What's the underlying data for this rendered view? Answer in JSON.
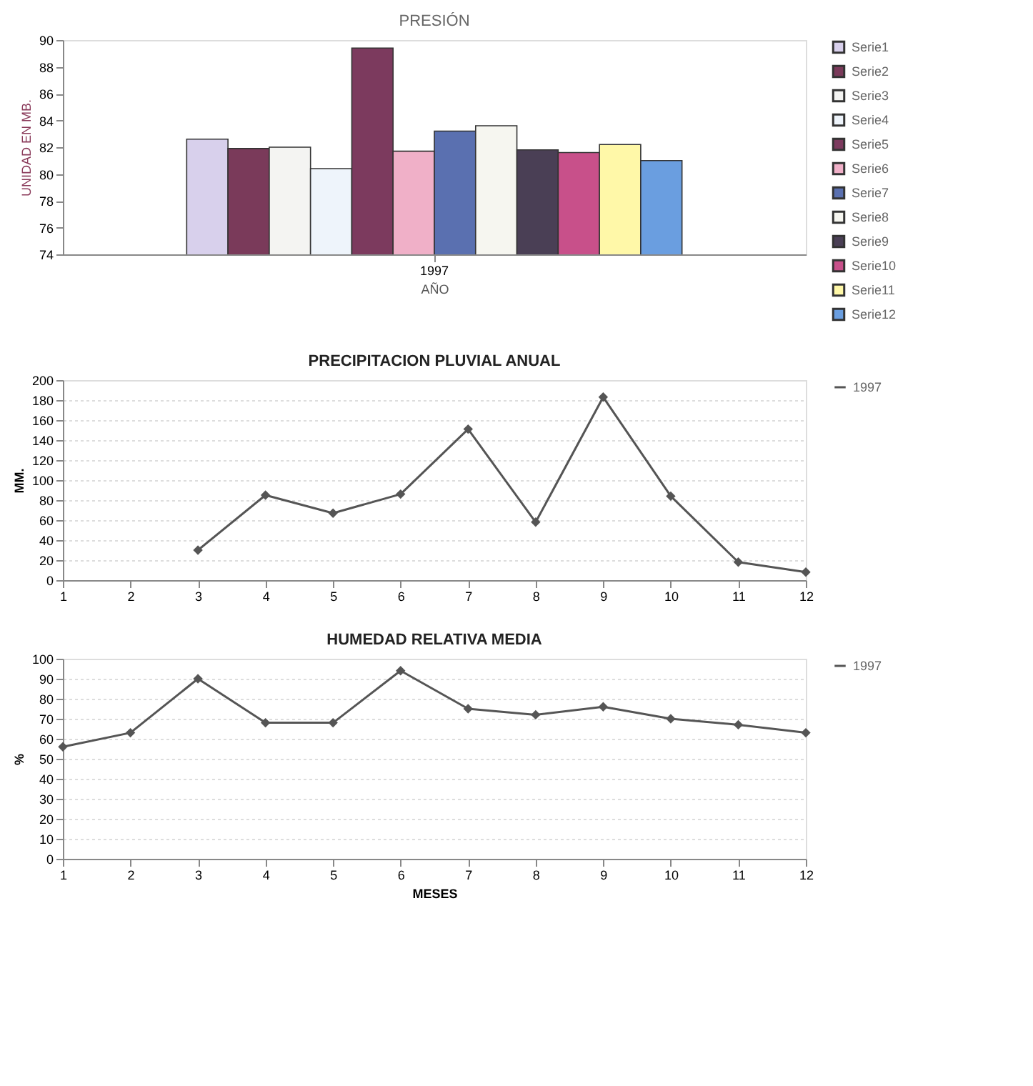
{
  "chart_data": [
    {
      "type": "bar",
      "title": "PRESIÓN",
      "xlabel": "AÑO",
      "ylabel": "UNIDAD EN MB.",
      "categories": [
        "1997"
      ],
      "ylim": [
        74,
        90
      ],
      "yticks": [
        74,
        76,
        78,
        80,
        82,
        84,
        86,
        88,
        90
      ],
      "grid": false,
      "legend": "right",
      "series": [
        {
          "name": "Serie1",
          "color": "#d8d0ec",
          "values": [
            82.6
          ]
        },
        {
          "name": "Serie2",
          "color": "#7a3a5a",
          "values": [
            81.9
          ]
        },
        {
          "name": "Serie3",
          "color": "#f4f4f2",
          "values": [
            82.0
          ]
        },
        {
          "name": "Serie4",
          "color": "#eef4fb",
          "values": [
            80.4
          ]
        },
        {
          "name": "Serie5",
          "color": "#7c3a5e",
          "values": [
            89.4
          ]
        },
        {
          "name": "Serie6",
          "color": "#f0b0c8",
          "values": [
            81.7
          ]
        },
        {
          "name": "Serie7",
          "color": "#5a70b0",
          "values": [
            83.2
          ]
        },
        {
          "name": "Serie8",
          "color": "#f6f6f0",
          "values": [
            83.6
          ]
        },
        {
          "name": "Serie9",
          "color": "#4a3f55",
          "values": [
            81.8
          ]
        },
        {
          "name": "Serie10",
          "color": "#c8508a",
          "values": [
            81.6
          ]
        },
        {
          "name": "Serie11",
          "color": "#fff8a8",
          "values": [
            82.2
          ]
        },
        {
          "name": "Serie12",
          "color": "#6a9ee0",
          "values": [
            81.0
          ]
        }
      ]
    },
    {
      "type": "line",
      "title": "PRECIPITACION PLUVIAL ANUAL",
      "ylabel": "MM.",
      "xlim": [
        1,
        12
      ],
      "xticks": [
        1,
        2,
        3,
        4,
        5,
        6,
        7,
        8,
        9,
        10,
        11,
        12
      ],
      "ylim": [
        0,
        200
      ],
      "yticks": [
        0,
        20,
        40,
        60,
        80,
        100,
        120,
        140,
        160,
        180,
        200
      ],
      "grid": "y",
      "legend": "right",
      "marker": "diamond",
      "line_style": "solid",
      "series": [
        {
          "name": "1997",
          "color": "#555555",
          "x": [
            3,
            4,
            5,
            6,
            7,
            8,
            9,
            10,
            11,
            12
          ],
          "values": [
            30,
            85,
            67,
            86,
            151,
            58,
            183,
            84,
            18,
            8
          ]
        }
      ]
    },
    {
      "type": "line",
      "title": "HUMEDAD RELATIVA MEDIA",
      "xlabel": "MESES",
      "ylabel": "%",
      "x": [
        1,
        2,
        3,
        4,
        5,
        6,
        7,
        8,
        9,
        10,
        11,
        12
      ],
      "xlim": [
        1,
        12
      ],
      "xticks": [
        1,
        2,
        3,
        4,
        5,
        6,
        7,
        8,
        9,
        10,
        11,
        12
      ],
      "ylim": [
        0,
        100
      ],
      "yticks": [
        0,
        10,
        20,
        30,
        40,
        50,
        60,
        70,
        80,
        90,
        100
      ],
      "grid": "y",
      "legend": "right",
      "marker": "diamond",
      "line_style": "solid",
      "series": [
        {
          "name": "1997",
          "color": "#555555",
          "values": [
            56,
            63,
            90,
            68,
            68,
            94,
            75,
            72,
            76,
            70,
            67,
            63
          ]
        }
      ]
    }
  ]
}
